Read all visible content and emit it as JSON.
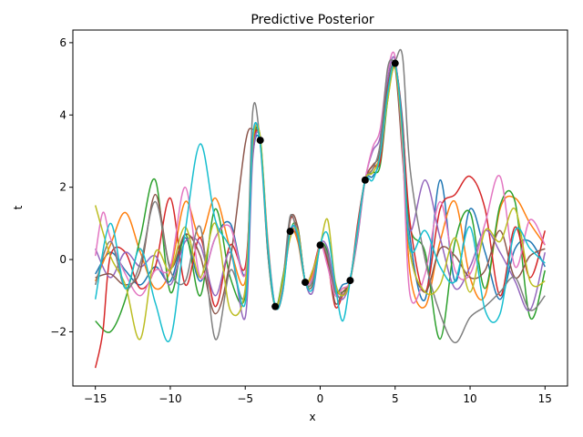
{
  "chart_data": {
    "type": "line",
    "title": "Predictive Posterior",
    "xlabel": "x",
    "ylabel": "t",
    "xlim": [
      -16.5,
      16.5
    ],
    "ylim": [
      -3.5,
      6.35
    ],
    "xticks": [
      -15,
      -10,
      -5,
      0,
      5,
      10,
      15
    ],
    "xtick_labels": [
      "−15",
      "−10",
      "−5",
      "0",
      "5",
      "10",
      "15"
    ],
    "yticks": [
      -2,
      0,
      2,
      4,
      6
    ],
    "ytick_labels": [
      "−2",
      "0",
      "2",
      "4",
      "6"
    ],
    "grid": false,
    "legend": false,
    "observed_points": {
      "x": [
        -4,
        -3,
        -2,
        -1,
        0,
        2,
        3,
        5
      ],
      "y": [
        3.3,
        -1.3,
        0.78,
        -0.63,
        0.4,
        -0.58,
        2.2,
        5.43
      ],
      "color": "#000000"
    },
    "series": [
      {
        "color": "#1f77b4",
        "x": [
          -15,
          -14,
          -13,
          -12,
          -11,
          -10,
          -9,
          -8,
          -7,
          -6,
          -5,
          -4.5,
          -4,
          -3.5,
          -3,
          -2.5,
          -2,
          -1.5,
          -1,
          -0.5,
          0,
          0.5,
          1,
          1.5,
          2,
          2.5,
          3,
          3.5,
          4,
          4.5,
          5,
          5.5,
          6,
          7,
          8,
          9,
          10,
          11,
          12,
          13,
          14,
          15
        ],
        "y": [
          -0.4,
          0.2,
          -0.3,
          -0.7,
          -0.2,
          -0.6,
          0.6,
          -0.6,
          0.6,
          1.0,
          -0.4,
          2.9,
          3.2,
          0.5,
          -1.3,
          -0.8,
          0.75,
          0.6,
          -0.6,
          -0.5,
          0.4,
          0.1,
          -0.9,
          -0.7,
          -0.5,
          0.7,
          2.2,
          2.3,
          2.8,
          4.5,
          5.3,
          3.8,
          0.6,
          -1.1,
          2.2,
          -0.6,
          1.4,
          0.2,
          -1.1,
          0.3,
          0.5,
          -0.2
        ]
      },
      {
        "color": "#ff7f0e",
        "x": [
          -15,
          -14,
          -13,
          -12,
          -11,
          -10,
          -9,
          -8,
          -7,
          -6,
          -5,
          -4.5,
          -4,
          -3.5,
          -3,
          -2.5,
          -2,
          -1.5,
          -1,
          -0.5,
          0,
          0.5,
          1,
          1.5,
          2,
          2.5,
          3,
          3.5,
          4,
          4.5,
          5,
          5.5,
          6,
          7,
          8,
          9,
          10,
          11,
          12,
          13,
          14,
          15
        ],
        "y": [
          -0.6,
          0.4,
          1.3,
          0.2,
          -0.8,
          -0.3,
          1.6,
          0.6,
          1.7,
          0.3,
          -0.6,
          3.0,
          3.3,
          0.3,
          -1.3,
          -0.6,
          0.8,
          0.5,
          -0.6,
          -0.4,
          0.4,
          0.0,
          -0.9,
          -0.8,
          -0.6,
          0.9,
          2.2,
          2.5,
          2.9,
          4.6,
          5.4,
          3.2,
          -0.4,
          -1.3,
          0.5,
          1.6,
          -0.5,
          -1.0,
          1.4,
          1.7,
          1.0,
          0.4
        ]
      },
      {
        "color": "#2ca02c",
        "x": [
          -15,
          -14,
          -13,
          -12,
          -11,
          -10,
          -9,
          -8,
          -7,
          -6,
          -5,
          -4.5,
          -4,
          -3.5,
          -3,
          -2.5,
          -2,
          -1.5,
          -1,
          -0.5,
          0,
          0.5,
          1,
          1.5,
          2,
          2.5,
          3,
          3.5,
          4,
          4.5,
          5,
          5.5,
          6,
          7,
          8,
          9,
          10,
          11,
          12,
          13,
          14,
          15
        ],
        "y": [
          -1.7,
          -2.0,
          -1.1,
          0.6,
          2.2,
          -0.9,
          0.7,
          -1.0,
          1.4,
          -0.5,
          -1.0,
          3.0,
          3.4,
          0.2,
          -1.3,
          -0.5,
          0.78,
          0.9,
          -0.6,
          -0.6,
          0.4,
          0.2,
          -0.8,
          -0.9,
          -0.58,
          0.8,
          2.2,
          2.4,
          2.6,
          4.4,
          5.4,
          3.6,
          0.9,
          0.2,
          -2.2,
          0.5,
          1.3,
          -0.8,
          1.5,
          1.6,
          -1.6,
          -0.3
        ]
      },
      {
        "color": "#d62728",
        "x": [
          -15,
          -14.5,
          -14,
          -13,
          -12,
          -11,
          -10,
          -9,
          -8,
          -7,
          -6,
          -5,
          -4.5,
          -4,
          -3.5,
          -3,
          -2.5,
          -2,
          -1.5,
          -1,
          -0.5,
          0,
          0.5,
          1,
          1.5,
          2,
          2.5,
          3,
          3.5,
          4,
          4.5,
          5,
          5.5,
          6,
          7,
          8,
          9,
          10,
          11,
          12,
          13,
          14,
          15
        ],
        "y": [
          -3.0,
          -2.0,
          0.1,
          0.2,
          -0.8,
          -0.2,
          1.7,
          -0.7,
          0.6,
          -1.3,
          0.4,
          -0.2,
          3.1,
          3.3,
          0.4,
          -1.3,
          -0.7,
          1.1,
          0.7,
          -0.6,
          -0.3,
          0.4,
          -0.1,
          -1.3,
          -1.0,
          -0.58,
          1.0,
          2.2,
          2.6,
          2.7,
          4.5,
          5.4,
          3.7,
          1.0,
          -0.9,
          1.4,
          1.8,
          2.3,
          1.4,
          -1.0,
          0.9,
          -0.5,
          0.8
        ]
      },
      {
        "color": "#9467bd",
        "x": [
          -15,
          -14,
          -13,
          -12,
          -11,
          -10,
          -9,
          -8,
          -7,
          -6,
          -5,
          -4.5,
          -4,
          -3.5,
          -3,
          -2.5,
          -2,
          -1.5,
          -1,
          -0.5,
          0,
          0.5,
          1,
          1.5,
          2,
          2.5,
          3,
          3.5,
          4,
          4.5,
          5,
          5.5,
          6,
          7,
          8,
          9,
          10,
          11,
          12,
          13,
          14,
          15
        ],
        "y": [
          0.3,
          -0.5,
          0.2,
          -0.2,
          0.1,
          -0.7,
          0.5,
          0.4,
          -1.0,
          0.2,
          -1.6,
          2.8,
          3.3,
          0.4,
          -1.3,
          -0.8,
          0.7,
          0.8,
          -0.6,
          -0.9,
          0.4,
          0.3,
          -0.8,
          -1.1,
          -0.58,
          0.6,
          2.2,
          3.0,
          3.4,
          5.0,
          5.5,
          3.0,
          0.8,
          2.2,
          0.6,
          -0.8,
          -0.2,
          0.8,
          0.2,
          -0.6,
          -1.4,
          0.2
        ]
      },
      {
        "color": "#8c564b",
        "x": [
          -15,
          -14,
          -13,
          -12,
          -11,
          -10,
          -9,
          -8,
          -7,
          -6,
          -5,
          -4.5,
          -4,
          -3.5,
          -3,
          -2.5,
          -2,
          -1.5,
          -1,
          -0.5,
          0,
          0.5,
          1,
          1.5,
          2,
          2.5,
          3,
          3.5,
          4,
          4.5,
          5,
          5.5,
          6,
          7,
          8,
          9,
          10,
          11,
          12,
          13,
          14,
          15
        ],
        "y": [
          -0.5,
          -0.4,
          -0.7,
          -0.3,
          1.8,
          -0.2,
          0.7,
          0.1,
          -1.5,
          0.0,
          3.2,
          3.6,
          3.3,
          0.3,
          -1.3,
          -0.9,
          1.1,
          0.9,
          -0.6,
          -0.7,
          0.4,
          0.0,
          -1.2,
          -0.9,
          -0.58,
          0.7,
          2.2,
          2.6,
          3.0,
          4.8,
          5.3,
          2.8,
          0.2,
          -0.9,
          0.3,
          0.1,
          -0.5,
          -0.3,
          0.8,
          -0.5,
          0.1,
          0.3
        ]
      },
      {
        "color": "#e377c2",
        "x": [
          -15,
          -14.5,
          -14,
          -13,
          -12,
          -11,
          -10,
          -9,
          -8,
          -7,
          -6,
          -5,
          -4.5,
          -4,
          -3.5,
          -3,
          -2.5,
          -2,
          -1.5,
          -1,
          -0.5,
          0,
          0.5,
          1,
          1.5,
          2,
          2.5,
          3,
          3.5,
          4,
          4.5,
          5,
          5.5,
          6,
          7,
          8,
          9,
          10,
          11,
          12,
          13,
          14,
          15
        ],
        "y": [
          0.1,
          1.3,
          0.6,
          -0.4,
          -1.0,
          -0.3,
          -0.2,
          2.0,
          -0.5,
          0.6,
          0.9,
          -0.4,
          3.4,
          3.3,
          0.6,
          -1.3,
          -0.7,
          0.6,
          0.7,
          -0.6,
          -0.5,
          0.4,
          -0.2,
          -1.0,
          -0.8,
          -0.58,
          0.7,
          2.2,
          3.1,
          3.6,
          5.2,
          5.6,
          3.0,
          -1.0,
          -0.4,
          1.6,
          -0.3,
          -0.4,
          1.0,
          2.3,
          -0.2,
          1.1,
          0.4
        ]
      },
      {
        "color": "#7f7f7f",
        "x": [
          -15,
          -14,
          -13,
          -12,
          -11,
          -10,
          -9,
          -8,
          -7,
          -6,
          -5,
          -4.5,
          -4,
          -3.5,
          -3,
          -2.5,
          -2,
          -1.5,
          -1,
          -0.5,
          0,
          0.5,
          1,
          1.5,
          2,
          2.5,
          3,
          3.5,
          4,
          4.5,
          5,
          5.5,
          6,
          7,
          8,
          9,
          10,
          11,
          12,
          13,
          14,
          15
        ],
        "y": [
          -0.7,
          0.5,
          -0.8,
          -0.1,
          1.6,
          -0.3,
          -0.6,
          0.9,
          -2.2,
          -0.3,
          -0.9,
          4.1,
          3.2,
          0.2,
          -1.3,
          -0.6,
          1.2,
          0.6,
          -0.6,
          -0.6,
          0.4,
          0.1,
          -0.9,
          -1.0,
          -0.58,
          0.9,
          2.2,
          2.5,
          3.2,
          5.3,
          5.5,
          5.6,
          2.5,
          0.0,
          -1.5,
          -2.3,
          -1.6,
          -1.3,
          -0.9,
          -0.5,
          -1.4,
          -1.0
        ]
      },
      {
        "color": "#bcbd22",
        "x": [
          -15,
          -14,
          -13,
          -12,
          -11,
          -10,
          -9,
          -8,
          -7,
          -6,
          -5,
          -4.5,
          -4,
          -3.5,
          -3,
          -2.5,
          -2,
          -1.5,
          -1,
          -0.5,
          0,
          0.5,
          1,
          1.5,
          2,
          2.5,
          3,
          3.5,
          4,
          4.5,
          5,
          5.5,
          6,
          7,
          8,
          9,
          10,
          11,
          12,
          13,
          14,
          15
        ],
        "y": [
          1.5,
          0.1,
          -0.7,
          -2.2,
          0.2,
          -0.3,
          0.9,
          -0.5,
          1.0,
          -1.4,
          -0.8,
          3.2,
          3.4,
          0.5,
          -1.3,
          -0.6,
          0.6,
          0.8,
          -0.6,
          -0.3,
          0.4,
          1.1,
          -0.6,
          -1.0,
          -0.58,
          0.8,
          2.2,
          2.4,
          2.9,
          4.4,
          5.3,
          3.3,
          0.2,
          -0.9,
          -0.7,
          0.6,
          -0.9,
          0.8,
          0.5,
          1.4,
          -0.6,
          -0.6
        ]
      },
      {
        "color": "#17becf",
        "x": [
          -15,
          -14,
          -13,
          -12,
          -11,
          -10,
          -9,
          -8,
          -7,
          -6,
          -5,
          -4.5,
          -4,
          -3.5,
          -3,
          -2.5,
          -2,
          -1.5,
          -1,
          -0.5,
          0,
          0.5,
          1,
          1.5,
          2,
          2.5,
          3,
          3.5,
          4,
          4.5,
          5,
          5.5,
          6,
          7,
          8,
          9,
          10,
          11,
          12,
          13,
          14,
          15
        ],
        "y": [
          -1.1,
          1.0,
          -0.8,
          0.3,
          -1.2,
          -2.2,
          0.8,
          3.2,
          1.1,
          0.3,
          -1.2,
          3.4,
          3.2,
          0.4,
          -1.3,
          -0.9,
          0.8,
          0.7,
          -0.6,
          -0.8,
          0.4,
          0.7,
          -0.7,
          -1.7,
          -0.58,
          0.8,
          2.2,
          2.2,
          2.9,
          4.6,
          5.4,
          3.5,
          0.3,
          0.8,
          -0.2,
          -0.6,
          0.9,
          -1.4,
          -1.5,
          0.8,
          0.3,
          -0.1
        ]
      }
    ]
  }
}
